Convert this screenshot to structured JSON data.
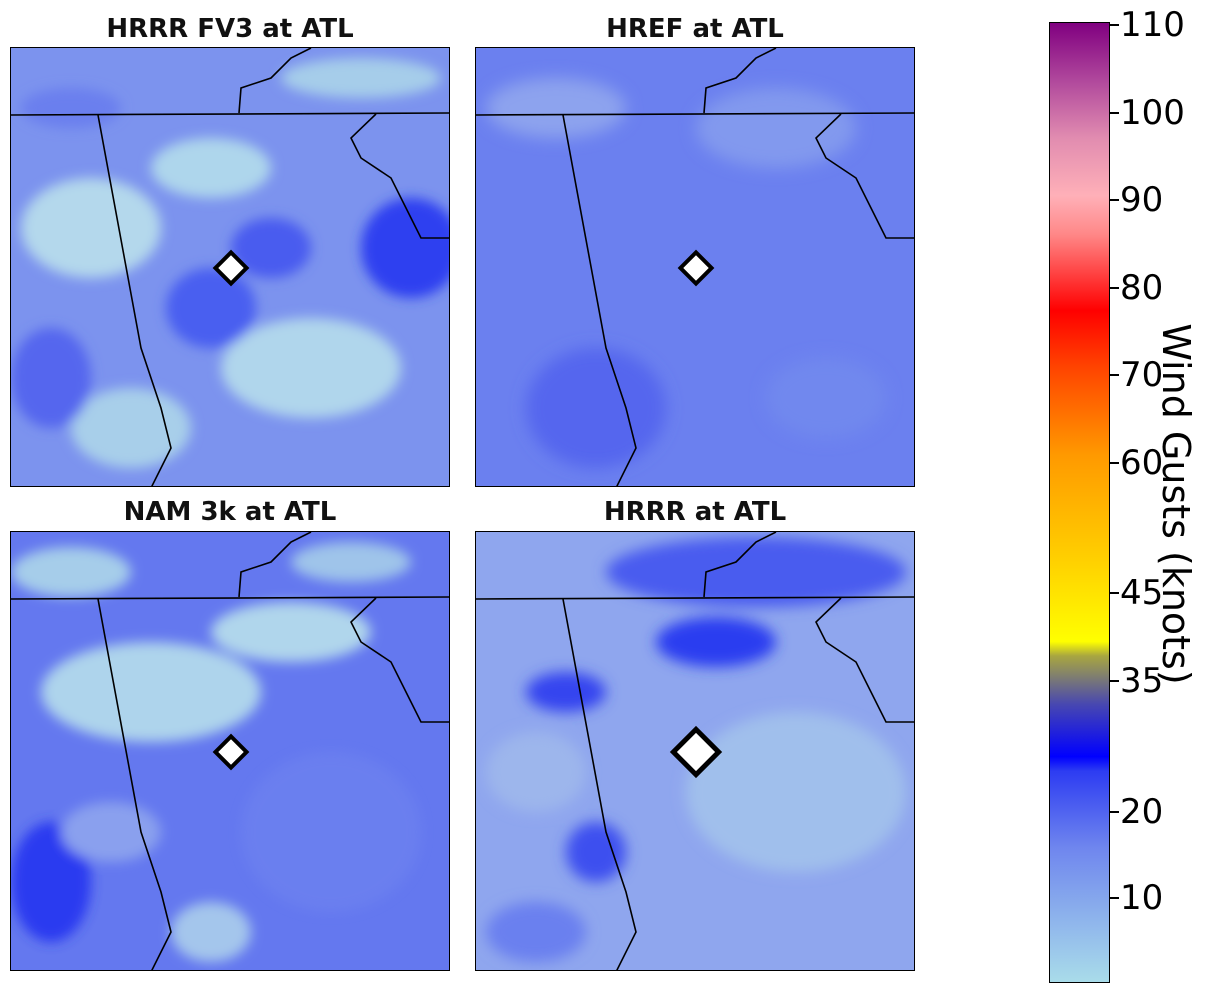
{
  "panels": [
    {
      "title": "HRRR FV3 at ATL"
    },
    {
      "title": "HREF at ATL"
    },
    {
      "title": "NAM 3k at ATL"
    },
    {
      "title": "HRRR at ATL"
    }
  ],
  "colorbar": {
    "label": "Wind Gusts (knots)",
    "tick_labels": [
      "10",
      "20",
      "35",
      "45",
      "60",
      "70",
      "80",
      "90",
      "100",
      "110"
    ],
    "colors": {
      "low": "#a9dcea",
      "mid_blue": "#0000ff",
      "yellow": "#ffff00",
      "red": "#ff0000",
      "high": "#800080"
    }
  },
  "marker": {
    "type": "diamond",
    "station": "ATL"
  }
}
